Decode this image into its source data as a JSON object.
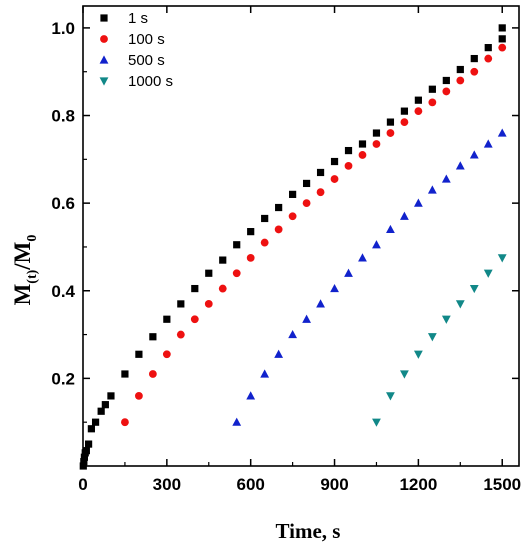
{
  "chart_data": {
    "type": "scatter",
    "title": "",
    "xlabel": "Time, s",
    "ylabel_main": "M",
    "ylabel_sub": "(t)",
    "ylabel_mid": "/M",
    "ylabel_sub2": "0",
    "xlim": [
      0,
      1560
    ],
    "ylim": [
      0,
      1.05
    ],
    "xticks": [
      0,
      300,
      600,
      900,
      1200,
      1500
    ],
    "xtick_labels": [
      "0",
      "300",
      "600",
      "900",
      "1200",
      "1500"
    ],
    "yticks": [
      0.2,
      0.4,
      0.6,
      0.8,
      1.0
    ],
    "ytick_labels": [
      "0.2",
      "0.4",
      "0.6",
      "0.8",
      "1.0"
    ],
    "legend_placement": "top-left",
    "series": [
      {
        "name": "1 s",
        "marker": "square",
        "color": "#000000",
        "points": [
          [
            1,
            0.0
          ],
          [
            3,
            0.01
          ],
          [
            5,
            0.02
          ],
          [
            8,
            0.03
          ],
          [
            12,
            0.035
          ],
          [
            20,
            0.05
          ],
          [
            30,
            0.085
          ],
          [
            45,
            0.1
          ],
          [
            65,
            0.125
          ],
          [
            80,
            0.14
          ],
          [
            100,
            0.16
          ],
          [
            150,
            0.21
          ],
          [
            200,
            0.255
          ],
          [
            250,
            0.295
          ],
          [
            300,
            0.335
          ],
          [
            350,
            0.37
          ],
          [
            400,
            0.405
          ],
          [
            450,
            0.44
          ],
          [
            500,
            0.47
          ],
          [
            550,
            0.505
          ],
          [
            600,
            0.535
          ],
          [
            650,
            0.565
          ],
          [
            700,
            0.59
          ],
          [
            750,
            0.62
          ],
          [
            800,
            0.645
          ],
          [
            850,
            0.67
          ],
          [
            900,
            0.695
          ],
          [
            950,
            0.72
          ],
          [
            1000,
            0.735
          ],
          [
            1050,
            0.76
          ],
          [
            1100,
            0.785
          ],
          [
            1150,
            0.81
          ],
          [
            1200,
            0.835
          ],
          [
            1250,
            0.86
          ],
          [
            1300,
            0.88
          ],
          [
            1350,
            0.905
          ],
          [
            1400,
            0.93
          ],
          [
            1450,
            0.955
          ],
          [
            1500,
            0.975
          ],
          [
            1500,
            1.0
          ]
        ]
      },
      {
        "name": "100 s",
        "marker": "circle",
        "color": "#ee1111",
        "points": [
          [
            150,
            0.1
          ],
          [
            200,
            0.16
          ],
          [
            250,
            0.21
          ],
          [
            300,
            0.255
          ],
          [
            350,
            0.3
          ],
          [
            400,
            0.335
          ],
          [
            450,
            0.37
          ],
          [
            500,
            0.405
          ],
          [
            550,
            0.44
          ],
          [
            600,
            0.475
          ],
          [
            650,
            0.51
          ],
          [
            700,
            0.54
          ],
          [
            750,
            0.57
          ],
          [
            800,
            0.6
          ],
          [
            850,
            0.625
          ],
          [
            900,
            0.655
          ],
          [
            950,
            0.685
          ],
          [
            1000,
            0.71
          ],
          [
            1050,
            0.735
          ],
          [
            1100,
            0.76
          ],
          [
            1150,
            0.785
          ],
          [
            1200,
            0.81
          ],
          [
            1250,
            0.83
          ],
          [
            1300,
            0.855
          ],
          [
            1350,
            0.88
          ],
          [
            1400,
            0.9
          ],
          [
            1450,
            0.93
          ],
          [
            1500,
            0.955
          ]
        ]
      },
      {
        "name": "500 s",
        "marker": "triangle-up",
        "color": "#1122cc",
        "points": [
          [
            550,
            0.1
          ],
          [
            600,
            0.16
          ],
          [
            650,
            0.21
          ],
          [
            700,
            0.255
          ],
          [
            750,
            0.3
          ],
          [
            800,
            0.335
          ],
          [
            850,
            0.37
          ],
          [
            900,
            0.405
          ],
          [
            950,
            0.44
          ],
          [
            1000,
            0.475
          ],
          [
            1050,
            0.505
          ],
          [
            1100,
            0.54
          ],
          [
            1150,
            0.57
          ],
          [
            1200,
            0.6
          ],
          [
            1250,
            0.63
          ],
          [
            1300,
            0.655
          ],
          [
            1350,
            0.685
          ],
          [
            1400,
            0.71
          ],
          [
            1450,
            0.735
          ],
          [
            1500,
            0.76
          ]
        ]
      },
      {
        "name": "1000 s",
        "marker": "triangle-down",
        "color": "#118888",
        "points": [
          [
            1050,
            0.1
          ],
          [
            1100,
            0.16
          ],
          [
            1150,
            0.21
          ],
          [
            1200,
            0.255
          ],
          [
            1250,
            0.295
          ],
          [
            1300,
            0.335
          ],
          [
            1350,
            0.37
          ],
          [
            1400,
            0.405
          ],
          [
            1450,
            0.44
          ],
          [
            1500,
            0.475
          ]
        ]
      }
    ]
  }
}
